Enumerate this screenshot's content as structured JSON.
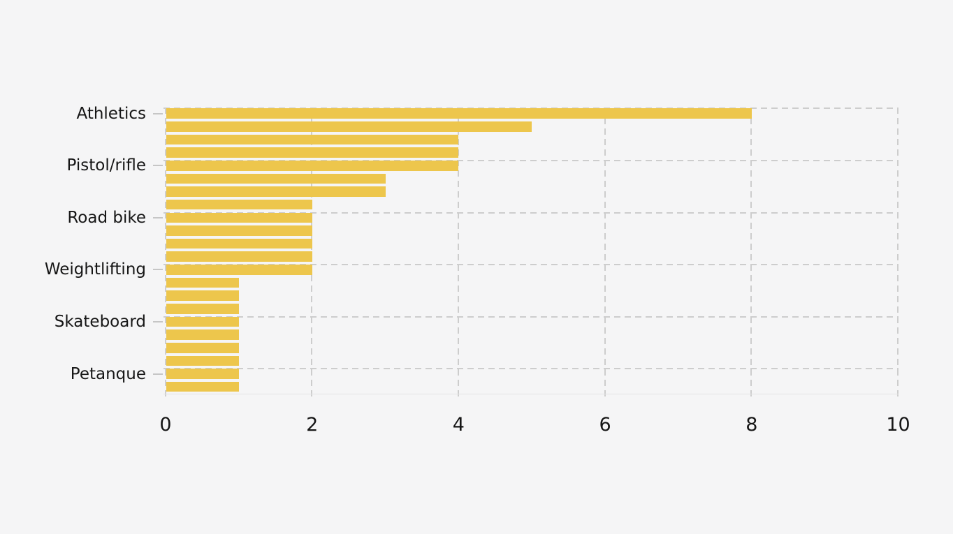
{
  "background_color": "#f5f5f6",
  "chart_data": {
    "type": "bar",
    "orientation": "horizontal",
    "title": "",
    "xlabel": "",
    "ylabel": "",
    "legend": "none",
    "grid": "dashed",
    "bar_color": "#edc64c",
    "grid_color": "#cdcdcd",
    "tick_color": "#c6c6c6",
    "text_color": "#161616",
    "xlim": [
      0,
      10
    ],
    "x_ticks": [
      "0",
      "2",
      "4",
      "6",
      "8",
      "10"
    ],
    "y_tick_labels": [
      "Athletics",
      "Pistol/rifle",
      "Road bike",
      "Weightlifting",
      "Skateboard",
      "Petanque"
    ],
    "labeled_bar_indices": [
      0,
      4,
      8,
      12,
      16,
      20
    ],
    "categories": [
      "Athletics",
      "",
      "",
      "",
      "Pistol/rifle",
      "",
      "",
      "",
      "Road bike",
      "",
      "",
      "",
      "Weightlifting",
      "",
      "",
      "",
      "Skateboard",
      "",
      "",
      "",
      "Petanque",
      ""
    ],
    "values": [
      8,
      5,
      4,
      4,
      4,
      3,
      3,
      2,
      2,
      2,
      2,
      2,
      2,
      1,
      1,
      1,
      1,
      1,
      1,
      1,
      1,
      1
    ]
  }
}
